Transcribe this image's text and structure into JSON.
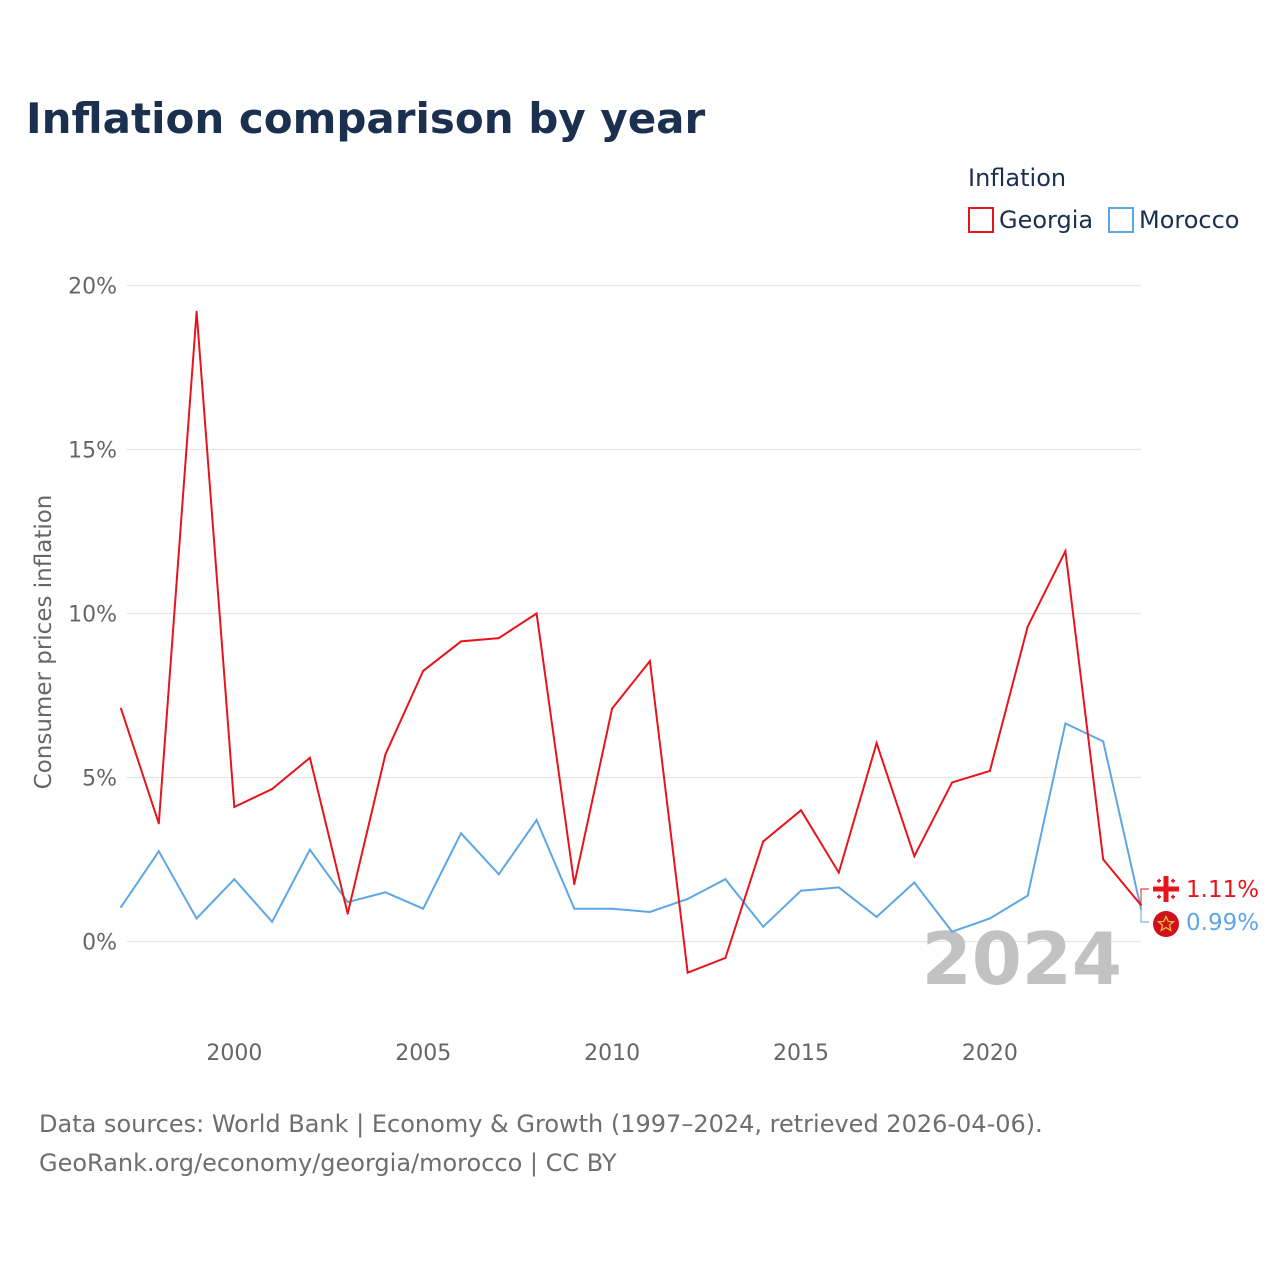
{
  "colors": {
    "georgia": "#e8141c",
    "morocco": "#5ea7e6",
    "title": "#1b2f4f",
    "tick": "#666666",
    "grid": "#e6e6e6",
    "watermark": "#c2c2c2"
  },
  "chart_data": {
    "type": "line",
    "title": "Inflation comparison by year",
    "ylabel": "Consumer prices inflation",
    "xlabel": "",
    "legend_title": "Inflation",
    "legend_position": "top-right",
    "x": [
      1997,
      1998,
      1999,
      2000,
      2001,
      2002,
      2003,
      2004,
      2005,
      2006,
      2007,
      2008,
      2009,
      2010,
      2011,
      2012,
      2013,
      2014,
      2015,
      2016,
      2017,
      2018,
      2019,
      2020,
      2021,
      2022,
      2023,
      2024
    ],
    "xlim": [
      1997,
      2024
    ],
    "ylim": [
      -2.2,
      21
    ],
    "x_ticks": [
      2000,
      2005,
      2010,
      2015,
      2020
    ],
    "x_tick_labels": [
      "2000",
      "2005",
      "2010",
      "2015",
      "2020"
    ],
    "y_ticks": [
      0,
      5,
      10,
      15,
      20
    ],
    "y_tick_labels": [
      "0%",
      "5%",
      "10%",
      "15%",
      "20%"
    ],
    "grid": true,
    "series": [
      {
        "name": "Georgia",
        "values": [
          7.1,
          3.6,
          19.2,
          4.1,
          4.65,
          5.6,
          0.85,
          5.7,
          8.25,
          9.15,
          9.25,
          10.0,
          1.75,
          7.1,
          8.55,
          -0.95,
          -0.5,
          3.05,
          4.0,
          2.1,
          6.05,
          2.6,
          4.85,
          5.2,
          9.6,
          11.9,
          2.5,
          1.11
        ],
        "end_label": "1.11%"
      },
      {
        "name": "Morocco",
        "values": [
          1.05,
          2.75,
          0.7,
          1.9,
          0.6,
          2.8,
          1.2,
          1.5,
          1.0,
          3.3,
          2.05,
          3.7,
          1.0,
          1.0,
          0.9,
          1.3,
          1.9,
          0.45,
          1.55,
          1.65,
          0.75,
          1.8,
          0.3,
          0.7,
          1.4,
          6.65,
          6.1,
          0.99
        ],
        "end_label": "0.99%"
      }
    ],
    "year_label": "2024"
  },
  "footer": {
    "line1": "Data sources: World Bank | Economy & Growth (1997–2024, retrieved 2026-04-06).",
    "line2": "GeoRank.org/economy/georgia/morocco | CC BY"
  }
}
